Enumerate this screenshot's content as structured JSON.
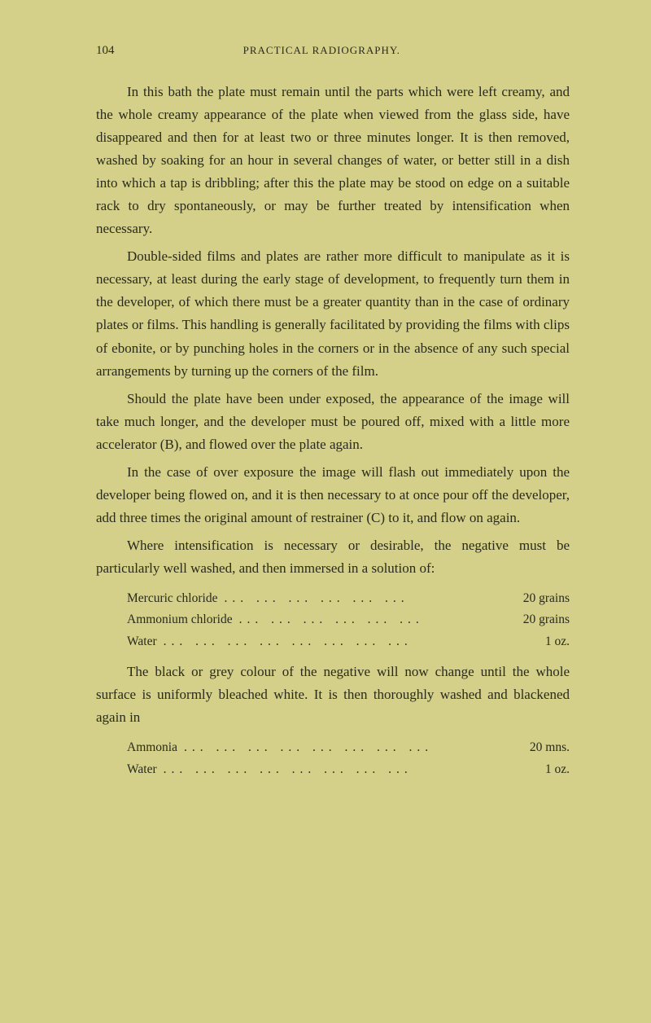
{
  "page_number": "104",
  "header_title": "PRACTICAL RADIOGRAPHY.",
  "background_color": "#d4d08a",
  "text_color": "#2a2a1a",
  "font_family": "Georgia, serif",
  "body_font_size": 17,
  "header_font_size": 13,
  "recipe_font_size": 15.5,
  "paragraphs": {
    "p1": "In this bath the plate must remain until the parts which were left creamy, and the whole creamy appearance of the plate when viewed from the glass side, have disappeared and then for at least two or three minutes longer. It is then removed, washed by soaking for an hour in several changes of water, or better still in a dish into which a tap is dribbling; after this the plate may be stood on edge on a suitable rack to dry spontaneously, or may be further treated by intensification when necessary.",
    "p2": "Double-sided films and plates are rather more difficult to manipulate as it is necessary, at least during the early stage of development, to frequently turn them in the developer, of which there must be a greater quantity than in the case of ordinary plates or films. This handling is generally facilitated by providing the films with clips of ebonite, or by punching holes in the corners or in the absence of any such special arrangements by turning up the corners of the film.",
    "p3": "Should the plate have been under exposed, the appearance of the image will take much longer, and the developer must be poured off, mixed with a little more accelerator (B), and flowed over the plate again.",
    "p4": "In the case of over exposure the image will flash out immediately upon the developer being flowed on, and it is then necessary to at once pour off the developer, add three times the original amount of restrainer (C) to it, and flow on again.",
    "p5": "Where intensification is necessary or desirable, the negative must be particularly well washed, and then immersed in a solution of:",
    "p6": "The black or grey colour of the negative will now change until the whole surface is uniformly bleached white. It is then thoroughly washed and blackened again in"
  },
  "recipe1": {
    "items": [
      {
        "label": "Mercuric chloride",
        "value": "20 grains"
      },
      {
        "label": "Ammonium chloride",
        "value": "20 grains"
      },
      {
        "label": "Water",
        "value": "1 oz."
      }
    ]
  },
  "recipe2": {
    "items": [
      {
        "label": "Ammonia",
        "value": "20 mns."
      },
      {
        "label": "Water",
        "value": "1 oz."
      }
    ]
  },
  "dots": "..."
}
